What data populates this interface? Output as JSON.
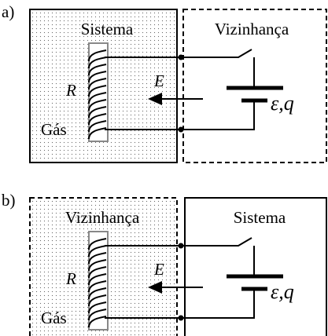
{
  "panels": [
    {
      "label": "a)",
      "left_box": "Sistema",
      "right_box": "Vizinhança",
      "resistor": "R",
      "energy": "E",
      "gas": "Gás",
      "source": "ε,q"
    },
    {
      "label": "b)",
      "left_box": "Vizinhança",
      "right_box": "Sistema",
      "resistor": "R",
      "energy": "E",
      "gas": "Gás",
      "source": "ε,q"
    }
  ]
}
